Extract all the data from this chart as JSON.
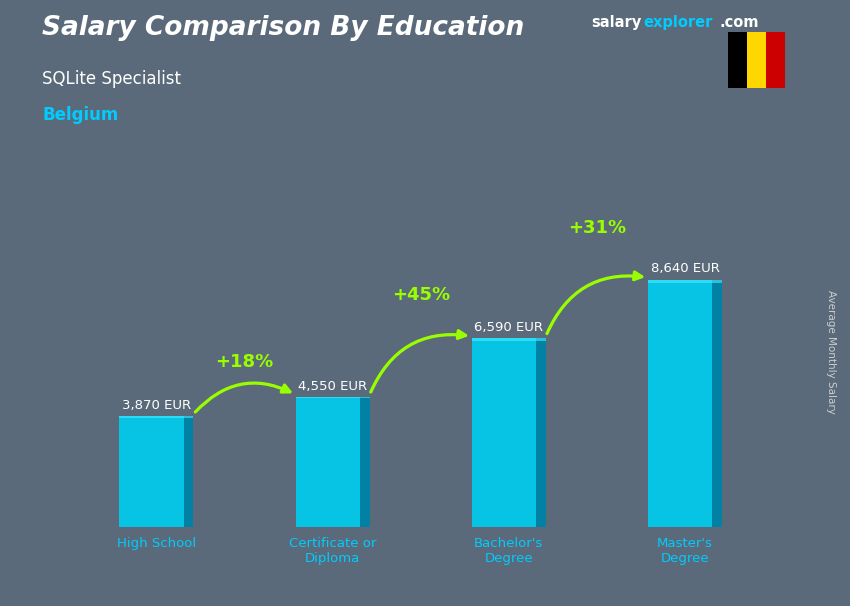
{
  "title": "Salary Comparison By Education",
  "subtitle_role": "SQLite Specialist",
  "subtitle_country": "Belgium",
  "ylabel": "Average Monthly Salary",
  "categories": [
    "High School",
    "Certificate or\nDiploma",
    "Bachelor's\nDegree",
    "Master's\nDegree"
  ],
  "values": [
    3870,
    4550,
    6590,
    8640
  ],
  "value_labels": [
    "3,870 EUR",
    "4,550 EUR",
    "6,590 EUR",
    "8,640 EUR"
  ],
  "pct_labels": [
    "+18%",
    "+45%",
    "+31%"
  ],
  "bar_color": "#00ccee",
  "bar_color_dark": "#007799",
  "bg_color": "#5a6a7a",
  "title_color": "#ffffff",
  "subtitle_role_color": "#ffffff",
  "subtitle_country_color": "#00ccff",
  "value_label_color": "#ffffff",
  "pct_color": "#99ff00",
  "arrow_color": "#99ff00",
  "xlabel_color": "#00ccff",
  "ylabel_color": "#cccccc",
  "ylim": [
    0,
    11000
  ],
  "bar_width": 0.42,
  "flag_black": "#000000",
  "flag_yellow": "#FFD700",
  "flag_red": "#CC0000",
  "watermark_salary_color": "#ffffff",
  "watermark_explorer_color": "#00ccff"
}
